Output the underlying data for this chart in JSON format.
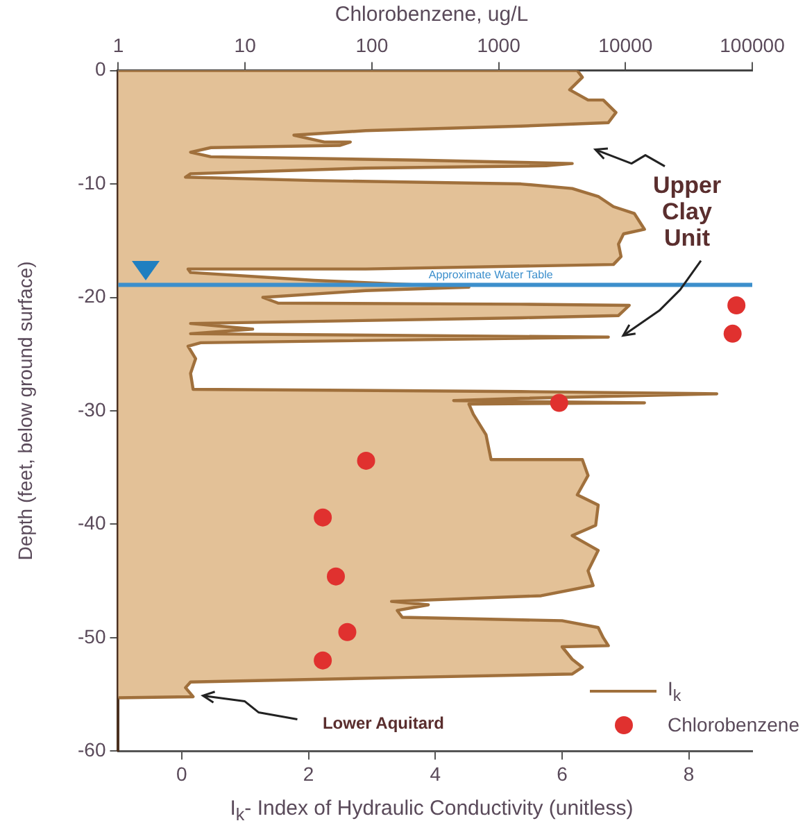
{
  "chart_data": {
    "type": "area",
    "xlabel": "I$_{k}$- Index of Hydraulic Conductivity (unitless)",
    "x2label": "Chlorobenzene, ug/L",
    "ylabel": "Depth (feet, below ground surface)",
    "xlim": [
      -1,
      9
    ],
    "xticks": [
      0,
      2,
      4,
      6,
      8
    ],
    "x2lim": [
      1,
      100000
    ],
    "x2ticks": [
      1,
      10,
      100,
      1000,
      10000,
      100000
    ],
    "ylim": [
      -60,
      0
    ],
    "yticks": [
      0,
      -10,
      -20,
      -30,
      -40,
      -50,
      -60
    ],
    "log": "x2",
    "legend": "bottom right",
    "series": [
      {
        "name": "I$_{k}$",
        "type": "area",
        "color": "#a0703c",
        "x": [
          -1,
          6.24,
          6.32,
          6.12,
          6.41,
          6.65,
          6.85,
          6.73,
          5.35,
          2.9,
          1.77,
          2.25,
          2.66,
          2.5,
          0.46,
          0.14,
          0.46,
          3.72,
          6.16,
          5.75,
          2.9,
          0.14,
          0.06,
          2.09,
          5.35,
          6.16,
          6.57,
          6.81,
          7.14,
          7.3,
          6.97,
          6.89,
          6.93,
          6.81,
          2.9,
          0.1,
          0.14,
          2.09,
          4.53,
          2.9,
          1.28,
          1.52,
          5.35,
          7.06,
          6.89,
          5.35,
          0.14,
          1.12,
          0.14,
          6.73,
          0.3,
          0.1,
          0.22,
          0.14,
          0.18,
          5.35,
          8.44,
          5.35,
          4.29,
          7.3,
          4.53,
          4.6,
          4.8,
          4.88,
          6.32,
          6.41,
          6.24,
          6.57,
          6.53,
          6.16,
          6.57,
          6.41,
          6.49,
          5.67,
          3.31,
          3.89,
          3.4,
          3.48,
          6.0,
          6.57,
          6.65,
          6.73,
          6.0,
          6.16,
          6.32,
          6.16,
          3.56,
          0.14,
          0.06,
          0.18,
          -1
        ],
        "values": [
          0,
          0,
          -0.6,
          -1.7,
          -2.6,
          -2.6,
          -3.7,
          -4.6,
          -4.9,
          -5.3,
          -5.7,
          -6.3,
          -6.3,
          -6.6,
          -6.8,
          -7.2,
          -7.6,
          -7.9,
          -8.2,
          -8.4,
          -8.6,
          -9.1,
          -9.4,
          -9.7,
          -10.0,
          -10.4,
          -11.1,
          -12.0,
          -12.6,
          -14.0,
          -14.4,
          -15.3,
          -16.4,
          -17.1,
          -17.5,
          -17.5,
          -17.8,
          -18.5,
          -19.1,
          -19.4,
          -20.0,
          -20.5,
          -20.6,
          -20.7,
          -21.6,
          -21.8,
          -22.3,
          -22.8,
          -23.2,
          -23.5,
          -24.0,
          -24.3,
          -25.4,
          -26.7,
          -28.1,
          -28.3,
          -28.5,
          -28.9,
          -29.1,
          -29.3,
          -29.4,
          -30.3,
          -32.1,
          -34.3,
          -34.3,
          -35.7,
          -37.4,
          -38.3,
          -40.1,
          -41.0,
          -42.3,
          -44.1,
          -45.4,
          -46.3,
          -46.8,
          -47.1,
          -47.6,
          -48.2,
          -48.5,
          -49.1,
          -50.0,
          -50.7,
          -50.8,
          -51.9,
          -52.6,
          -53.2,
          -53.5,
          -53.9,
          -54.4,
          -55.2,
          -55.3
        ]
      },
      {
        "name": "Chlorobenzene",
        "type": "scatter",
        "axis": "x2",
        "marker": "circle",
        "color": "#e0312f",
        "x": [
          75000,
          70000,
          3000,
          90,
          41,
          52,
          64,
          41
        ],
        "values": [
          -20.7,
          -23.2,
          -29.3,
          -34.4,
          -39.4,
          -44.6,
          -49.5,
          -52.0
        ]
      }
    ],
    "ref_lines": [
      {
        "axis": "y",
        "value": -18.9,
        "label": "Approximate Water Table",
        "color": "#3c8fcc"
      }
    ],
    "annotations": [
      "Upper Clay Unit",
      "Lower Aquitard"
    ]
  }
}
